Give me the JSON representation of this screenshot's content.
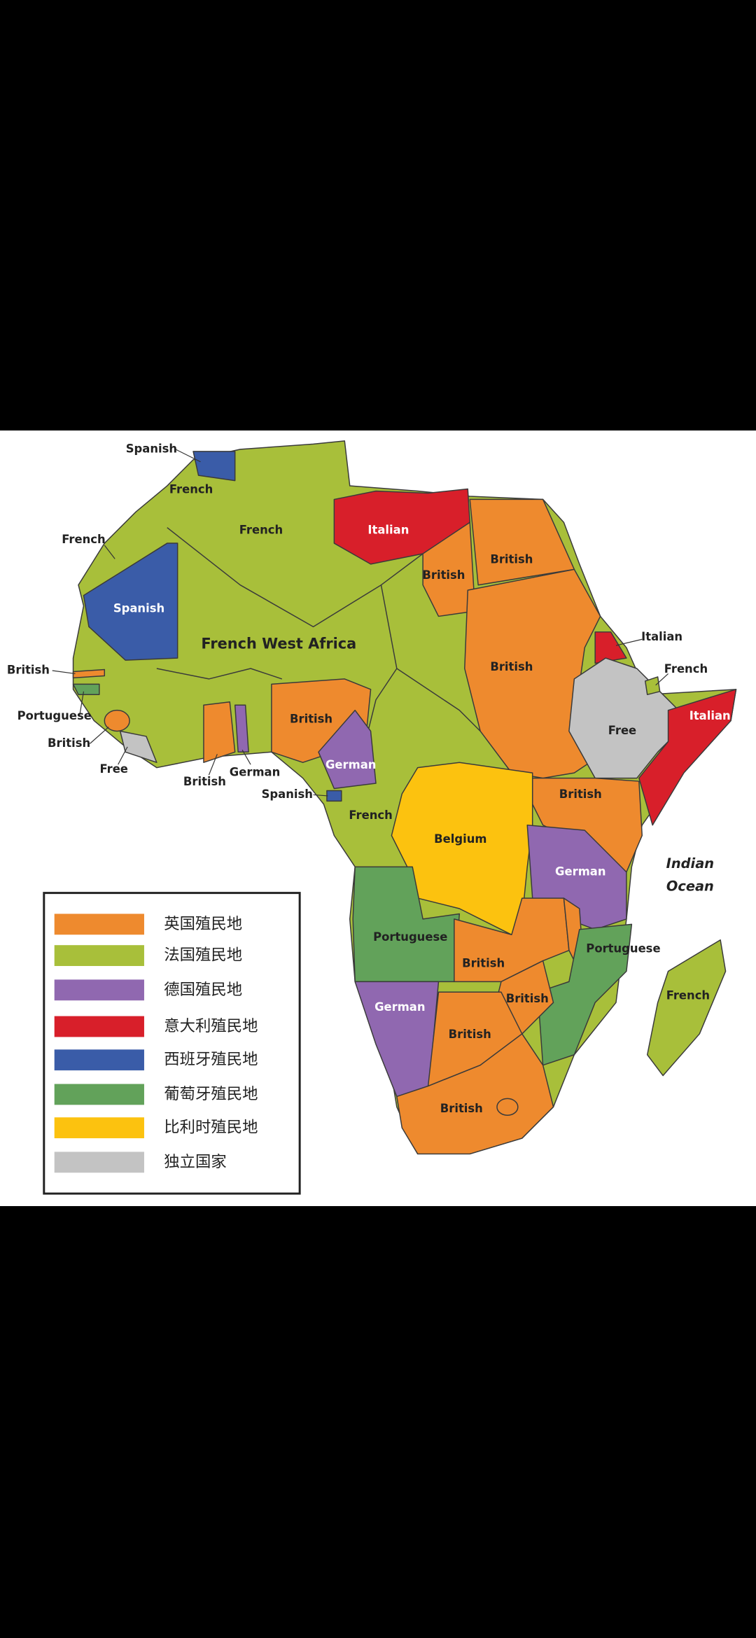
{
  "map": {
    "labels": [
      "Spanish",
      "French",
      "French",
      "Italian",
      "British",
      "British",
      "French",
      "Spanish",
      "French West Africa",
      "Italian",
      "British",
      "British",
      "French",
      "Free",
      "Portuguese",
      "Italian",
      "British",
      "British",
      "German",
      "Free",
      "German",
      "British",
      "Spanish",
      "British",
      "French",
      "Belgium",
      "German",
      "Portuguese",
      "Portuguese",
      "British",
      "British",
      "German",
      "French",
      "British",
      "British"
    ],
    "ocean": [
      "Indian",
      "Ocean"
    ]
  },
  "legend": [
    {
      "label": "英国殖民地",
      "color": "#ee8a2e"
    },
    {
      "label": "法国殖民地",
      "color": "#a8bf3a"
    },
    {
      "label": "德国殖民地",
      "color": "#9068b0"
    },
    {
      "label": "意大利殖民地",
      "color": "#d81f2a"
    },
    {
      "label": "西班牙殖民地",
      "color": "#3a5ca8"
    },
    {
      "label": "葡萄牙殖民地",
      "color": "#62a25a"
    },
    {
      "label": "比利时殖民地",
      "color": "#fcc20f"
    },
    {
      "label": "独立国家",
      "color": "#c3c3c3"
    }
  ]
}
